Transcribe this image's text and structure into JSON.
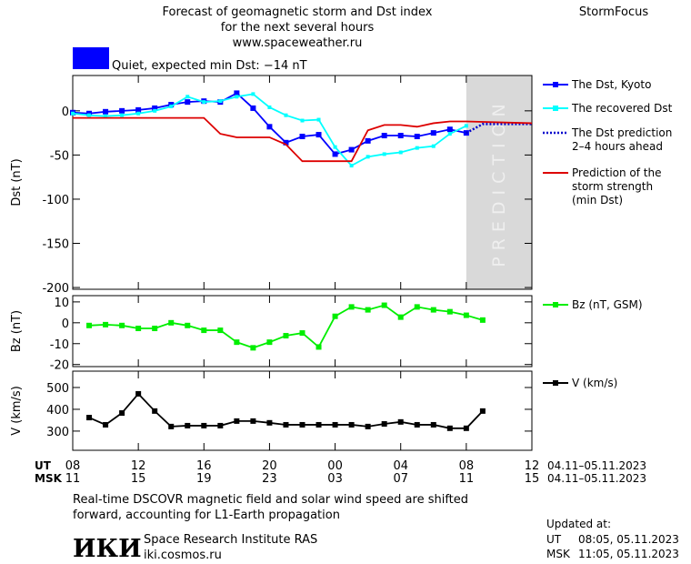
{
  "header": {
    "title": [
      "Forecast of geomagnetic storm and Dst index",
      "for the next several hours",
      "www.spaceweather.ru"
    ],
    "brand": "StormFocus"
  },
  "status": {
    "color": "#0000ff",
    "text": "Quiet, expected min Dst: −14 nT"
  },
  "chart_data": [
    {
      "type": "line",
      "ylabel": "Dst (nT)",
      "ylim": [
        -202,
        40
      ],
      "yticks": [
        0,
        -50,
        -100,
        -150,
        -200
      ],
      "shade": {
        "from": 24,
        "to": 28,
        "label": "PREDICTION",
        "color": "#d9d9d9"
      },
      "series": [
        {
          "name": [
            "The Dst, Kyoto"
          ],
          "color": "#0000ff",
          "marker": "square",
          "x": [
            0,
            1,
            2,
            3,
            4,
            5,
            6,
            7,
            8,
            9,
            10,
            11,
            12,
            13,
            14,
            15,
            16,
            17,
            18,
            19,
            20,
            21,
            22,
            23,
            24
          ],
          "values": [
            -2,
            -3,
            -1,
            0,
            1,
            3,
            7,
            10,
            11,
            10,
            20,
            3,
            -18,
            -36,
            -29,
            -27,
            -49,
            -44,
            -34,
            -28,
            -28,
            -29,
            -25,
            -21,
            -25
          ]
        },
        {
          "name": [
            "The recovered Dst"
          ],
          "color": "#00ffff",
          "marker": "small-square",
          "x": [
            0,
            1,
            2,
            3,
            4,
            5,
            6,
            7,
            8,
            9,
            10,
            11,
            12,
            13,
            14,
            15,
            16,
            17,
            18,
            19,
            20,
            21,
            22,
            23,
            24
          ],
          "values": [
            -3,
            -5,
            -6,
            -5,
            -3,
            0,
            5,
            16,
            10,
            11,
            16,
            19,
            4,
            -5,
            -11,
            -10,
            -41,
            -62,
            -52,
            -49,
            -47,
            -42,
            -40,
            -26,
            -17
          ]
        },
        {
          "name": [
            "The Dst prediction",
            "2–4 hours ahead"
          ],
          "color": "#0000cc",
          "dash": "dotted",
          "x": [
            24,
            25,
            28
          ],
          "values": [
            -25,
            -15,
            -15
          ]
        },
        {
          "name": [
            "Prediction of the",
            "storm strength",
            "(min Dst)"
          ],
          "color": "#dd0000",
          "x": [
            0,
            8,
            9,
            10,
            12,
            13,
            14,
            17,
            18,
            19,
            20,
            21,
            22,
            23,
            24,
            28
          ],
          "values": [
            -8,
            -8,
            -26,
            -30,
            -30,
            -38,
            -57,
            -57,
            -22,
            -16,
            -16,
            -18,
            -14,
            -12,
            -12,
            -14
          ]
        }
      ]
    },
    {
      "type": "line",
      "ylabel": "Bz (nT)",
      "ylim": [
        -21,
        13
      ],
      "yticks": [
        10,
        0,
        -10,
        -20
      ],
      "series": [
        {
          "name": [
            "Bz (nT, GSM)"
          ],
          "color": "#00ee00",
          "marker": "square",
          "x": [
            1,
            2,
            3,
            4,
            5,
            6,
            7,
            8,
            9,
            10,
            11,
            12,
            13,
            14,
            15,
            16,
            17,
            18,
            19,
            20,
            21,
            22,
            23,
            24,
            25
          ],
          "values": [
            -1.3,
            -0.9,
            -1.3,
            -2.7,
            -2.7,
            0,
            -1.3,
            -3.6,
            -3.6,
            -9.3,
            -12,
            -9.3,
            -6.2,
            -4.9,
            -11.6,
            3.1,
            7.6,
            6.2,
            8.4,
            2.7,
            7.6,
            6.2,
            5.3,
            3.6,
            1.3
          ]
        }
      ]
    },
    {
      "type": "line",
      "ylabel": "V (km/s)",
      "ylim": [
        212,
        575
      ],
      "yticks": [
        300,
        400,
        500
      ],
      "series": [
        {
          "name": [
            "V (km/s)"
          ],
          "color": "#000000",
          "marker": "square",
          "x": [
            1,
            2,
            3,
            4,
            5,
            6,
            7,
            8,
            9,
            10,
            11,
            12,
            13,
            14,
            15,
            16,
            17,
            18,
            19,
            20,
            21,
            22,
            23,
            24,
            25
          ],
          "values": [
            362,
            329,
            383,
            471,
            392,
            321,
            325,
            325,
            325,
            346,
            346,
            338,
            329,
            329,
            329,
            329,
            329,
            321,
            333,
            342,
            329,
            329,
            313,
            313,
            392
          ]
        }
      ]
    }
  ],
  "time_axis": {
    "xlim": [
      0,
      28
    ],
    "xticks": [
      0,
      4,
      8,
      12,
      16,
      20,
      24,
      28
    ],
    "rows": [
      {
        "name": "UT",
        "labels": [
          "08",
          "12",
          "16",
          "20",
          "00",
          "04",
          "08",
          "12"
        ],
        "range": "04.11–05.11.2023"
      },
      {
        "name": "MSK",
        "labels": [
          "11",
          "15",
          "19",
          "23",
          "03",
          "07",
          "11",
          "15"
        ],
        "range": "04.11–05.11.2023"
      }
    ]
  },
  "footer": {
    "note": [
      "Real-time DSCOVR magnetic field and solar wind speed are shifted",
      "forward, accounting for L1-Earth propagation"
    ],
    "logo": "ИКИ",
    "institute": "Space Research Institute RAS",
    "url": "iki.cosmos.ru",
    "updated": {
      "label": "Updated at:",
      "rows": [
        {
          "zone": "UT",
          "time": "08:05, 05.11.2023"
        },
        {
          "zone": "MSK",
          "time": "11:05, 05.11.2023"
        }
      ]
    }
  }
}
